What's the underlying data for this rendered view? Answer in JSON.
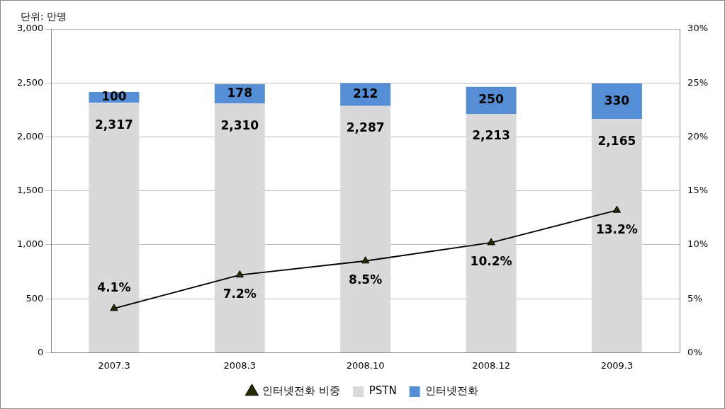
{
  "chart_data": {
    "type": "bar",
    "ylabel": "단위: 만명",
    "categories": [
      "2007.3",
      "2008.3",
      "2008.10",
      "2008.12",
      "2009.3"
    ],
    "stacked": true,
    "grid": true,
    "legend": "bottom",
    "data_labels": true,
    "ylim": [
      0,
      3000
    ],
    "yticks": [
      0,
      500,
      {
        "value": 1000,
        "label": "1,000"
      },
      {
        "value": 1500,
        "label": "1,500"
      },
      {
        "value": 2000,
        "label": "2,000"
      },
      {
        "value": 2500,
        "label": "2,500"
      },
      {
        "value": 3000,
        "label": "3,000"
      }
    ],
    "y2lim": [
      0,
      30
    ],
    "y2ticks": [
      {
        "value": 0,
        "label": "0%"
      },
      {
        "value": 5,
        "label": "5%"
      },
      {
        "value": 10,
        "label": "10%"
      },
      {
        "value": 15,
        "label": "15%"
      },
      {
        "value": 20,
        "label": "20%"
      },
      {
        "value": 25,
        "label": "25%"
      },
      {
        "value": 30,
        "label": "30%"
      }
    ],
    "series": [
      {
        "name": "PSTN",
        "type": "bar",
        "color": "#d9d9d9",
        "values": [
          2317,
          2310,
          2287,
          2213,
          2165
        ],
        "value_labels": [
          "2,317",
          "2,310",
          "2,287",
          "2,213",
          "2,165"
        ]
      },
      {
        "name": "인터넷전화",
        "type": "bar",
        "color": "#558ed5",
        "values": [
          100,
          178,
          212,
          250,
          330
        ]
      },
      {
        "name": "인터넷전화 비중",
        "type": "line",
        "axis": "y2",
        "color": "#000000",
        "marker": "triangle",
        "values": [
          4.1,
          7.2,
          8.5,
          10.2,
          13.2
        ],
        "value_labels": [
          "4.1%",
          "7.2%",
          "8.5%",
          "10.2%",
          "13.2%"
        ]
      }
    ]
  }
}
